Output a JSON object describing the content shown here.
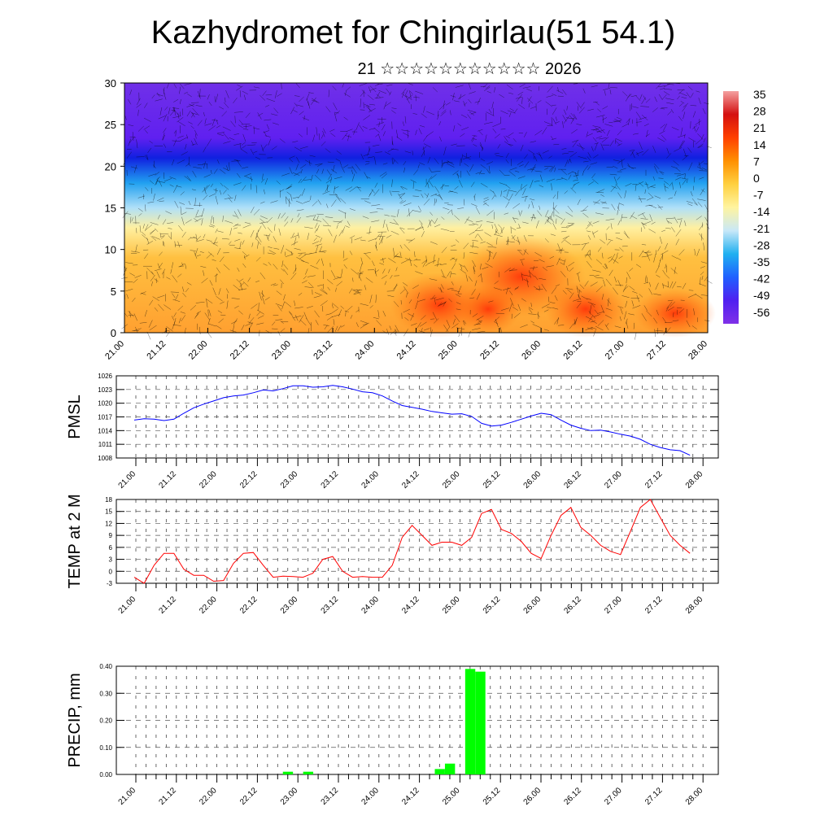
{
  "title": "Kazhydromet for Chingirlau(51 54.1)",
  "subtitle": "21 ☆☆☆☆☆☆☆☆☆☆☆ 2026",
  "chart_data": [
    {
      "type": "heatmap",
      "name": "temperature-cross-section",
      "ylim": [
        0,
        30
      ],
      "yticks": [
        0,
        5,
        10,
        15,
        20,
        25,
        30
      ],
      "xticks": [
        "21.00",
        "21.12",
        "22.00",
        "22.12",
        "23.00",
        "23.12",
        "24.00",
        "24.12",
        "25.00",
        "25.12",
        "26.00",
        "26.12",
        "27.00",
        "27.12",
        "28.00"
      ],
      "colorbar": {
        "labels": [
          "35",
          "28",
          "21",
          "14",
          "7",
          "0",
          "-7",
          "-14",
          "-21",
          "-28",
          "-35",
          "-42",
          "-49",
          "-56"
        ],
        "colors": [
          "#f4a0a0",
          "#d41010",
          "#ff4000",
          "#ff9000",
          "#ffd040",
          "#fff4a0",
          "#c8e8f8",
          "#20b0f0",
          "#2060ff",
          "#5020f0",
          "#8030e8"
        ]
      }
    },
    {
      "type": "line",
      "ylabel": "PMSL",
      "ylim": [
        1008,
        1026
      ],
      "yticks": [
        1008,
        1011,
        1014,
        1017,
        1020,
        1023,
        1026
      ],
      "color": "#0000ff",
      "values": [
        1016.3,
        1016.6,
        1016.5,
        1016.2,
        1016.5,
        1017.8,
        1019,
        1019.8,
        1020.5,
        1021.2,
        1021.6,
        1021.8,
        1022.3,
        1022.9,
        1022.7,
        1023.2,
        1023.8,
        1023.8,
        1023.5,
        1023.6,
        1023.9,
        1023.6,
        1023.1,
        1022.5,
        1022.3,
        1021.6,
        1020.5,
        1019.5,
        1019.1,
        1018.7,
        1018.2,
        1017.9,
        1017.6,
        1017.7,
        1017.1,
        1015.6,
        1015.0,
        1015.2,
        1015.8,
        1016.5,
        1017.2,
        1017.8,
        1017.5,
        1016.3,
        1015.2,
        1014.5,
        1014.0,
        1014.1,
        1013.7,
        1013.2,
        1012.8,
        1012.1,
        1011.0,
        1010.3,
        1009.8,
        1009.6,
        1008.6
      ]
    },
    {
      "type": "line",
      "ylabel": "TEMP at 2 M",
      "ylim": [
        -3,
        18
      ],
      "yticks": [
        -3,
        0,
        3,
        6,
        9,
        12,
        15,
        18
      ],
      "color": "#ff0000",
      "values": [
        -1.5,
        -3,
        1.5,
        4.5,
        4.5,
        0.5,
        -1,
        -1,
        -2.5,
        -2.3,
        2,
        4.5,
        4.7,
        1.5,
        -1.5,
        -1.2,
        -1.3,
        -1.5,
        -0.5,
        3,
        3.7,
        0,
        -1.5,
        -1.3,
        -1.5,
        -1.5,
        1.5,
        8.5,
        11.5,
        9,
        6.5,
        7.3,
        7.3,
        6.5,
        8.5,
        14.5,
        15.5,
        10.5,
        9.5,
        7.5,
        4.5,
        3.2,
        9,
        14,
        16,
        11,
        9,
        6.5,
        5,
        4.2,
        10,
        16,
        18,
        13.5,
        9,
        6.5,
        4.5
      ]
    },
    {
      "type": "bar",
      "ylabel": "PRECIP, mm",
      "ylim": [
        0,
        0.4
      ],
      "yticks": [
        "0.00",
        "0.10",
        "0.20",
        "0.30",
        "0.40"
      ],
      "color": "#00ff00",
      "bars": [
        {
          "hour": 45,
          "value": 0.01
        },
        {
          "hour": 51,
          "value": 0.01
        },
        {
          "hour": 90,
          "value": 0.02
        },
        {
          "hour": 93,
          "value": 0.04
        },
        {
          "hour": 99,
          "value": 0.39
        },
        {
          "hour": 102,
          "value": 0.38
        }
      ]
    }
  ]
}
